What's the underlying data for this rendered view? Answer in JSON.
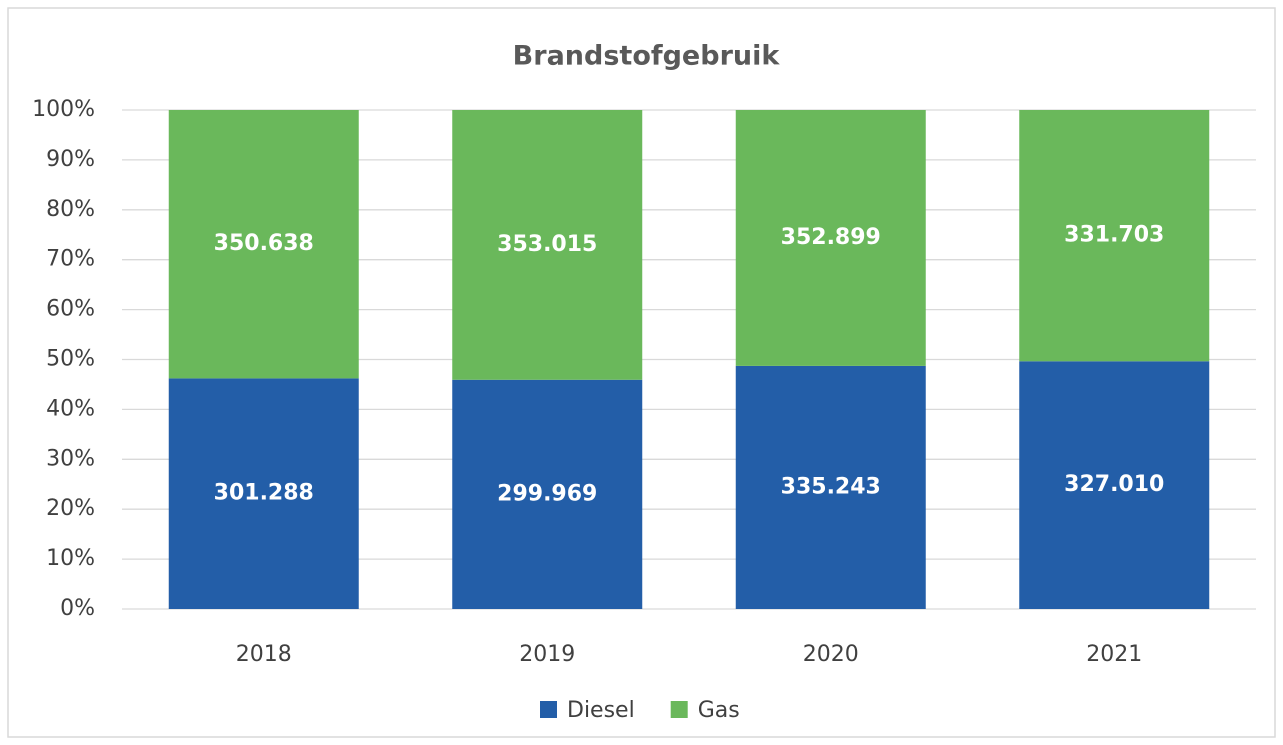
{
  "chart_data": {
    "type": "bar",
    "stack": "percent",
    "title": "Brandstofgebruik",
    "categories": [
      "2018",
      "2019",
      "2020",
      "2021"
    ],
    "series": [
      {
        "name": "Diesel",
        "color": "#235ea8",
        "values": [
          301288,
          299969,
          335243,
          327010
        ],
        "value_labels": [
          "301.288",
          "299.969",
          "335.243",
          "327.010"
        ]
      },
      {
        "name": "Gas",
        "color": "#6ab85b",
        "values": [
          350638,
          353015,
          352899,
          331703
        ],
        "value_labels": [
          "350.638",
          "353.015",
          "352.899",
          "331.703"
        ]
      }
    ],
    "ylim": [
      0,
      100
    ],
    "yticks": [
      {
        "value": 0,
        "label": "0%"
      },
      {
        "value": 10,
        "label": "10%"
      },
      {
        "value": 20,
        "label": "20%"
      },
      {
        "value": 30,
        "label": "30%"
      },
      {
        "value": 40,
        "label": "40%"
      },
      {
        "value": 50,
        "label": "50%"
      },
      {
        "value": 60,
        "label": "60%"
      },
      {
        "value": 70,
        "label": "70%"
      },
      {
        "value": 80,
        "label": "80%"
      },
      {
        "value": 90,
        "label": "90%"
      },
      {
        "value": 100,
        "label": "100%"
      }
    ],
    "grid": true,
    "legend": "bottom"
  }
}
